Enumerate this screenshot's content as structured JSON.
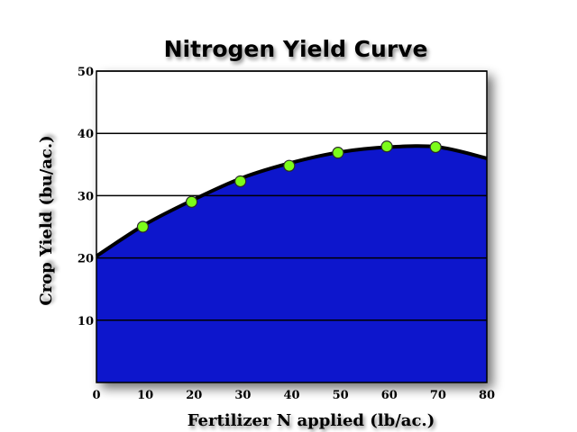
{
  "chart_data": {
    "type": "area",
    "title": "Nitrogen Yield Curve",
    "xlabel": "Fertilizer N applied (lb/ac.)",
    "ylabel": "Crop Yield (bu/ac.)",
    "xlim": [
      0,
      80
    ],
    "ylim": [
      0,
      50
    ],
    "xticks": [
      0,
      10,
      20,
      30,
      40,
      50,
      60,
      70,
      80
    ],
    "yticks": [
      10,
      20,
      30,
      40,
      50
    ],
    "grid": "horizontal",
    "curve": {
      "x": [
        0,
        10,
        20,
        30,
        40,
        50,
        60,
        70,
        80
      ],
      "y": [
        20.3,
        25.4,
        29.4,
        32.9,
        35.3,
        37.0,
        37.8,
        37.8,
        36.0
      ]
    },
    "points": {
      "x": [
        9.5,
        19.5,
        29.5,
        39.5,
        49.5,
        59.5,
        69.5
      ],
      "y": [
        25.0,
        29.0,
        32.3,
        34.8,
        36.9,
        37.9,
        37.8
      ]
    },
    "colors": {
      "area_fill": "#0a12cc",
      "curve_line": "#000000",
      "point_fill": "#7cfc1a",
      "point_stroke": "#2a2a2a",
      "grid": "#000000",
      "plot_background": "#ffffff"
    }
  }
}
